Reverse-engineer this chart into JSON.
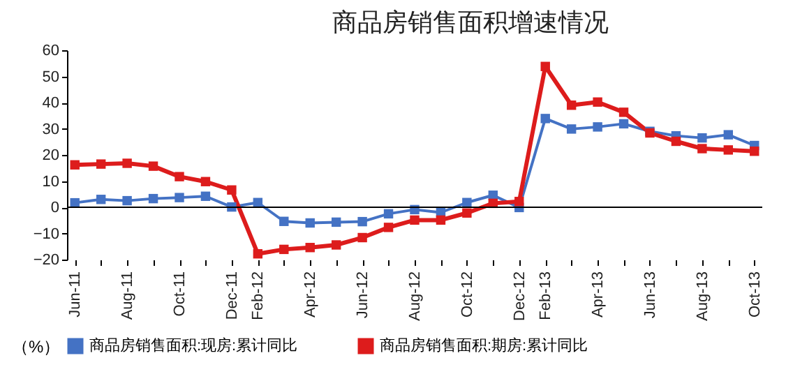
{
  "chart_data": {
    "type": "line",
    "title": "商品房销售面积增速情况",
    "ylabel": "（%）",
    "categories": [
      "Jun-11",
      null,
      "Aug-11",
      null,
      "Oct-11",
      null,
      "Dec-11",
      "Feb-12",
      null,
      "Apr-12",
      null,
      "Jun-12",
      null,
      "Aug-12",
      null,
      "Oct-12",
      null,
      "Dec-12",
      "Feb-13",
      null,
      "Apr-13",
      null,
      "Jun-13",
      null,
      "Aug-13",
      null,
      "Oct-13"
    ],
    "series": [
      {
        "name": "商品房销售面积:现房:累计同比",
        "color": "#4472c4",
        "values": [
          1.7,
          3.0,
          2.5,
          3.3,
          3.7,
          4.2,
          0.1,
          1.8,
          -5.4,
          -6.0,
          -5.7,
          -5.5,
          -2.5,
          -0.9,
          -2.0,
          1.8,
          4.6,
          -0.1,
          33.9,
          29.9,
          30.7,
          31.9,
          29.0,
          27.3,
          26.5,
          27.7,
          23.6
        ]
      },
      {
        "name": "商品房销售面积:期房:累计同比",
        "color": "#dd1c1c",
        "values": [
          16.2,
          16.5,
          16.8,
          15.7,
          11.7,
          9.8,
          6.6,
          -17.8,
          -16.1,
          -15.4,
          -14.4,
          -11.6,
          -7.7,
          -4.9,
          -4.9,
          -2.2,
          1.5,
          2.2,
          53.8,
          39.0,
          40.2,
          36.3,
          28.4,
          25.2,
          22.4,
          21.9,
          21.4
        ]
      }
    ],
    "ylim": [
      -20,
      60
    ],
    "yticks": [
      -20,
      -10,
      0,
      10,
      20,
      30,
      40,
      50,
      60
    ],
    "grid": false,
    "ref_lines": [
      {
        "axis": "y",
        "value": 0,
        "color": "#000000"
      }
    ],
    "legend": "bottom",
    "marker": "square",
    "line_style": "solid"
  }
}
